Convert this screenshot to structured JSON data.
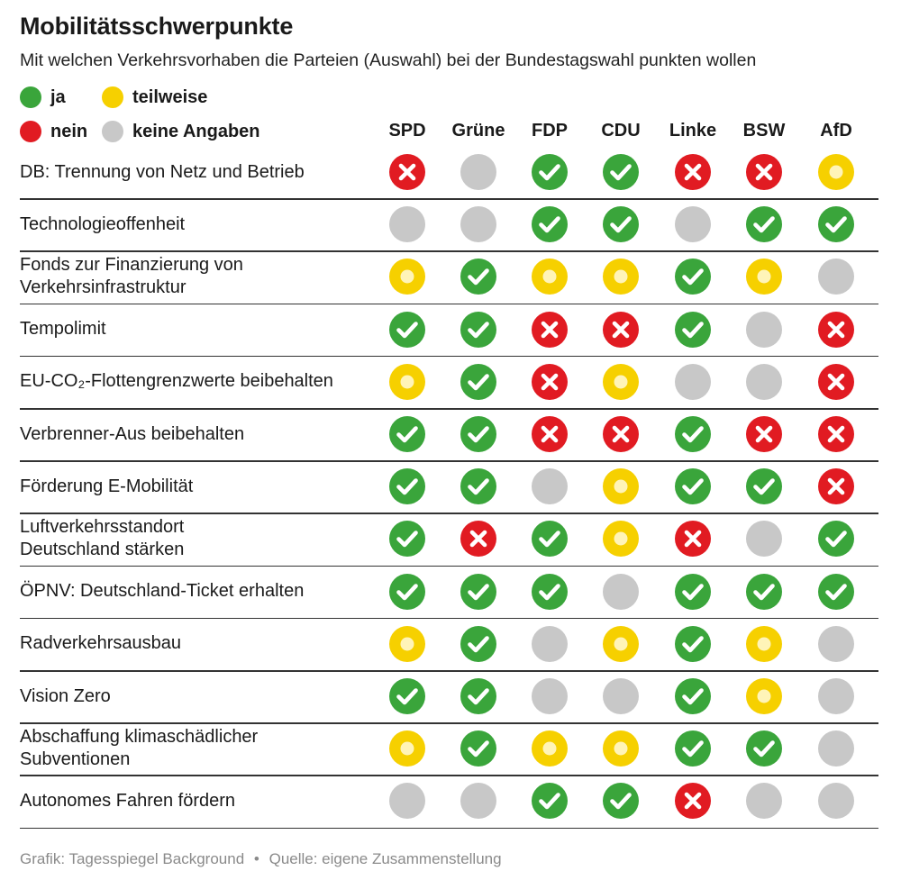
{
  "title": "Mobilitätsschwerpunkte",
  "subtitle": "Mit welchen Verkehrsvorhaben die Parteien (Auswahl) bei der Bundestagswahl punkten wollen",
  "legend": [
    {
      "key": "ja",
      "label": "ja",
      "color": "#3aa53b"
    },
    {
      "key": "teilweise",
      "label": "teilweise",
      "color": "#f6d000"
    },
    {
      "key": "nein",
      "label": "nein",
      "color": "#e11b22"
    },
    {
      "key": "keine",
      "label": "keine Angaben",
      "color": "#c8c8c8"
    }
  ],
  "colors": {
    "ja": "#3aa53b",
    "teilweise": "#f6d000",
    "teilweise_inner": "#fff4b8",
    "nein": "#e11b22",
    "keine": "#c8c8c8",
    "mark": "#ffffff"
  },
  "chart_data": {
    "type": "table",
    "parties": [
      "SPD",
      "Grüne",
      "FDP",
      "CDU",
      "Linke",
      "BSW",
      "AfD"
    ],
    "rows": [
      {
        "label": [
          "DB: Trennung von Netz und Betrieb"
        ],
        "values": [
          "nein",
          "keine",
          "ja",
          "ja",
          "nein",
          "nein",
          "teilweise"
        ]
      },
      {
        "label": [
          "Technologieoffenheit"
        ],
        "values": [
          "keine",
          "keine",
          "ja",
          "ja",
          "keine",
          "ja",
          "ja"
        ]
      },
      {
        "label": [
          "Fonds zur Finanzierung von",
          "Verkehrsinfrastruktur"
        ],
        "values": [
          "teilweise",
          "ja",
          "teilweise",
          "teilweise",
          "ja",
          "teilweise",
          "keine"
        ]
      },
      {
        "label": [
          "Tempolimit"
        ],
        "values": [
          "ja",
          "ja",
          "nein",
          "nein",
          "ja",
          "keine",
          "nein"
        ]
      },
      {
        "label": [
          "EU-CO₂-Flottengrenzwerte beibehalten"
        ],
        "values": [
          "teilweise",
          "ja",
          "nein",
          "teilweise",
          "keine",
          "keine",
          "nein"
        ]
      },
      {
        "label": [
          "Verbrenner-Aus beibehalten"
        ],
        "values": [
          "ja",
          "ja",
          "nein",
          "nein",
          "ja",
          "nein",
          "nein"
        ]
      },
      {
        "label": [
          "Förderung E-Mobilität"
        ],
        "values": [
          "ja",
          "ja",
          "keine",
          "teilweise",
          "ja",
          "ja",
          "nein"
        ]
      },
      {
        "label": [
          "Luftverkehrsstandort",
          "Deutschland stärken"
        ],
        "values": [
          "ja",
          "nein",
          "ja",
          "teilweise",
          "nein",
          "keine",
          "ja"
        ]
      },
      {
        "label": [
          "ÖPNV: Deutschland-Ticket erhalten"
        ],
        "values": [
          "ja",
          "ja",
          "ja",
          "keine",
          "ja",
          "ja",
          "ja"
        ]
      },
      {
        "label": [
          "Radverkehrsausbau"
        ],
        "values": [
          "teilweise",
          "ja",
          "keine",
          "teilweise",
          "ja",
          "teilweise",
          "keine"
        ]
      },
      {
        "label": [
          "Vision Zero"
        ],
        "values": [
          "ja",
          "ja",
          "keine",
          "keine",
          "ja",
          "teilweise",
          "keine"
        ]
      },
      {
        "label": [
          "Abschaffung klimaschädlicher",
          "Subventionen"
        ],
        "values": [
          "teilweise",
          "ja",
          "teilweise",
          "teilweise",
          "ja",
          "ja",
          "keine"
        ]
      },
      {
        "label": [
          "Autonomes Fahren fördern"
        ],
        "values": [
          "keine",
          "keine",
          "ja",
          "ja",
          "nein",
          "keine",
          "keine"
        ]
      }
    ]
  },
  "footer": {
    "left": "Grafik: Tagesspiegel Background",
    "separator": "•",
    "right": "Quelle: eigene Zusammenstellung"
  }
}
